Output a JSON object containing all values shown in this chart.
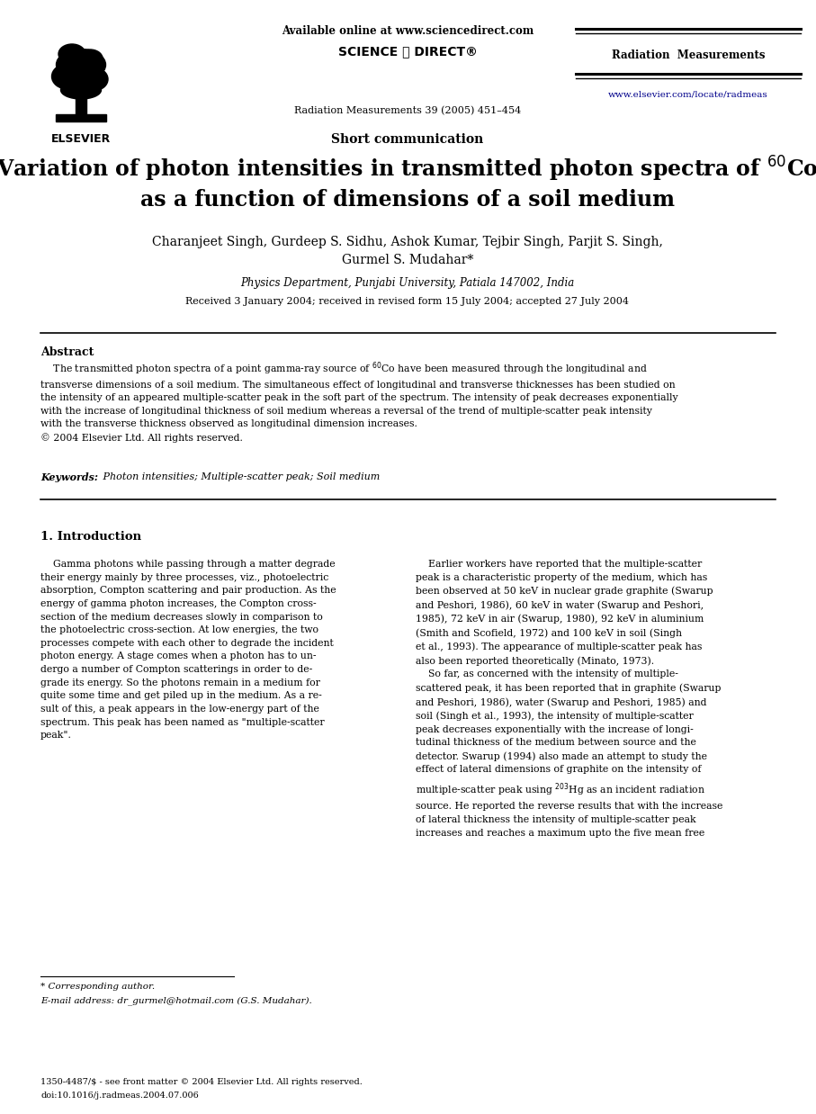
{
  "background_color": "#ffffff",
  "page_width": 9.07,
  "page_height": 12.38,
  "dpi": 100,
  "header_available_online": "Available online at www.sciencedirect.com",
  "header_journal_name": "Radiation  Measurements",
  "header_journal_ref": "Radiation Measurements 39 (2005) 451–454",
  "header_url": "www.elsevier.com/locate/radmeas",
  "header_url_color": "#00008b",
  "article_type": "Short communication",
  "authors_line1": "Charanjeet Singh, Gurdeep S. Sidhu, Ashok Kumar, Tejbir Singh, Parjit S. Singh,",
  "authors_line2": "Gurmel S. Mudahar*",
  "affiliation": "Physics Department, Punjabi University, Patiala 147002, India",
  "received": "Received 3 January 2004; received in revised form 15 July 2004; accepted 27 July 2004",
  "abstract_heading": "Abstract",
  "copyright": "© 2004 Elsevier Ltd. All rights reserved.",
  "keywords_label": "Keywords:",
  "keywords": " Photon intensities; Multiple-scatter peak; Soil medium",
  "intro_heading": "1. Introduction",
  "footnote_star": "* Corresponding author.",
  "footnote_email": "E-mail address: dr_gurmel@hotmail.com (G.S. Mudahar).",
  "footer_issn": "1350-4487/$ - see front matter © 2004 Elsevier Ltd. All rights reserved.",
  "footer_doi": "doi:10.1016/j.radmeas.2004.07.006",
  "blue": "#00008b"
}
